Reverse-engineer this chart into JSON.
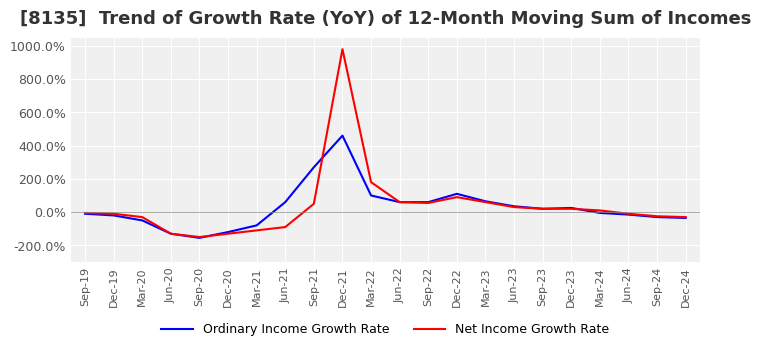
{
  "title": "[8135]  Trend of Growth Rate (YoY) of 12-Month Moving Sum of Incomes",
  "title_fontsize": 13,
  "xlabel": "",
  "ylabel": "",
  "ylim": [
    -300,
    1050
  ],
  "yticks": [
    -200,
    0,
    200,
    400,
    600,
    800,
    1000
  ],
  "ytick_labels": [
    "-200.0%",
    "0.0%",
    "200.0%",
    "400.0%",
    "600.0%",
    "800.0%",
    "1000.0%"
  ],
  "background_color": "#ffffff",
  "plot_bg_color": "#f0f0f0",
  "grid_color": "#ffffff",
  "legend_labels": [
    "Ordinary Income Growth Rate",
    "Net Income Growth Rate"
  ],
  "legend_colors": [
    "#0000ff",
    "#ff0000"
  ],
  "x_labels": [
    "Sep-19",
    "Dec-19",
    "Mar-20",
    "Jun-20",
    "Sep-20",
    "Dec-20",
    "Mar-21",
    "Jun-21",
    "Sep-21",
    "Dec-21",
    "Mar-22",
    "Jun-22",
    "Sep-22",
    "Dec-22",
    "Mar-23",
    "Jun-23",
    "Sep-23",
    "Dec-23",
    "Mar-24",
    "Jun-24",
    "Sep-24",
    "Dec-24"
  ],
  "ordinary_income": [
    -10,
    -20,
    -50,
    -130,
    -155,
    -120,
    -80,
    60,
    270,
    460,
    100,
    60,
    60,
    110,
    65,
    35,
    20,
    25,
    -5,
    -15,
    -30,
    -35
  ],
  "net_income": [
    -5,
    -10,
    -30,
    -130,
    -150,
    -130,
    -110,
    -90,
    50,
    980,
    180,
    60,
    55,
    90,
    60,
    30,
    20,
    20,
    10,
    -10,
    -25,
    -30
  ],
  "line_width": 1.5
}
